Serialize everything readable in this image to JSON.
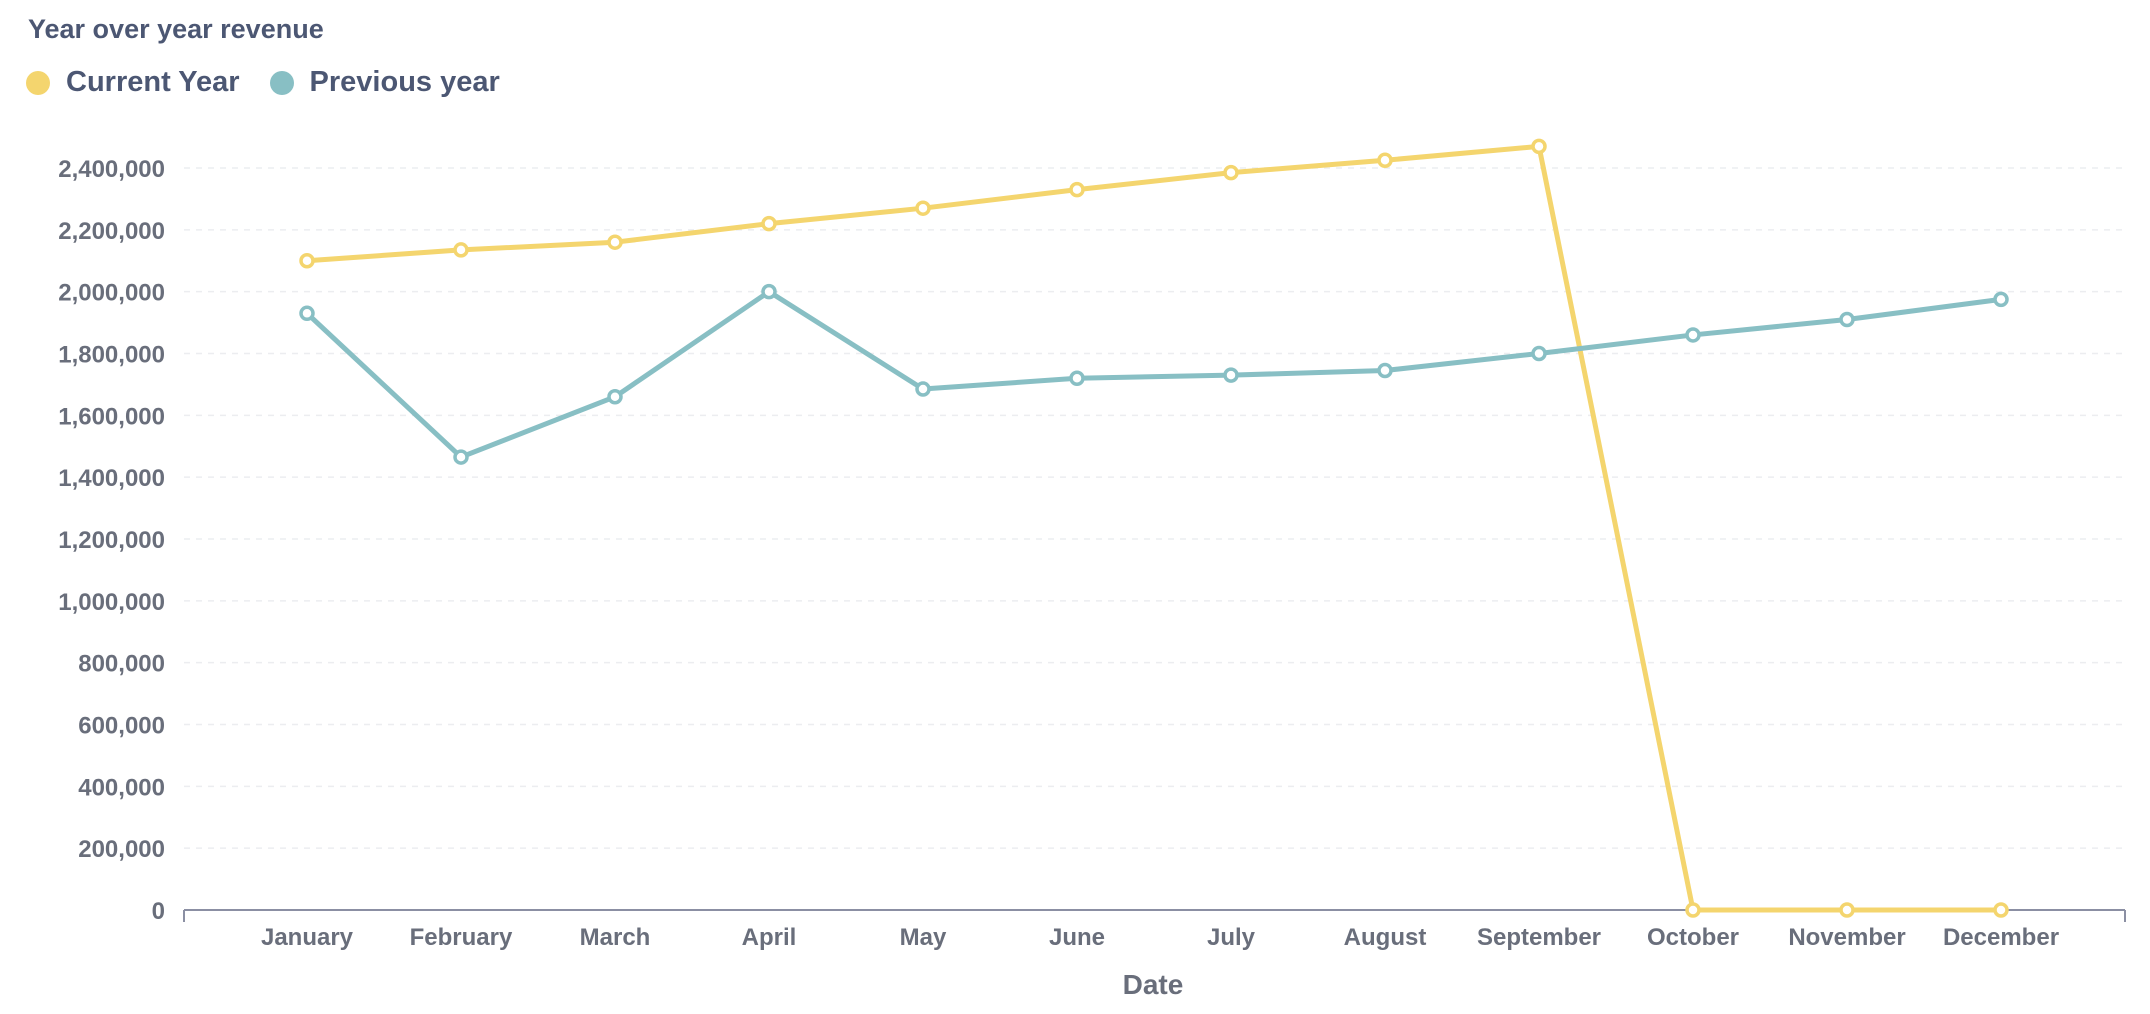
{
  "chart_data": {
    "type": "line",
    "title": "Year over year revenue",
    "xlabel": "Date",
    "ylabel": "",
    "ylim": [
      0,
      2400000
    ],
    "yticks": [
      0,
      200000,
      400000,
      600000,
      800000,
      1000000,
      1200000,
      1400000,
      1600000,
      1800000,
      2000000,
      2200000,
      2400000
    ],
    "ytick_labels": [
      "0",
      "200,000",
      "400,000",
      "600,000",
      "800,000",
      "1,000,000",
      "1,200,000",
      "1,400,000",
      "1,600,000",
      "1,800,000",
      "2,000,000",
      "2,200,000",
      "2,400,000"
    ],
    "categories": [
      "January",
      "February",
      "March",
      "April",
      "May",
      "June",
      "July",
      "August",
      "September",
      "October",
      "November",
      "December"
    ],
    "legend_position": "top-left",
    "grid": true,
    "series": [
      {
        "name": "Current Year",
        "color": "#f4d56e",
        "values": [
          2100000,
          2135000,
          2160000,
          2220000,
          2270000,
          2330000,
          2385000,
          2425000,
          2470000,
          0,
          0,
          0
        ]
      },
      {
        "name": "Previous year",
        "color": "#88bfc4",
        "values": [
          1930000,
          1465000,
          1660000,
          2000000,
          1685000,
          1720000,
          1730000,
          1745000,
          1800000,
          1860000,
          1910000,
          1975000
        ]
      }
    ]
  }
}
